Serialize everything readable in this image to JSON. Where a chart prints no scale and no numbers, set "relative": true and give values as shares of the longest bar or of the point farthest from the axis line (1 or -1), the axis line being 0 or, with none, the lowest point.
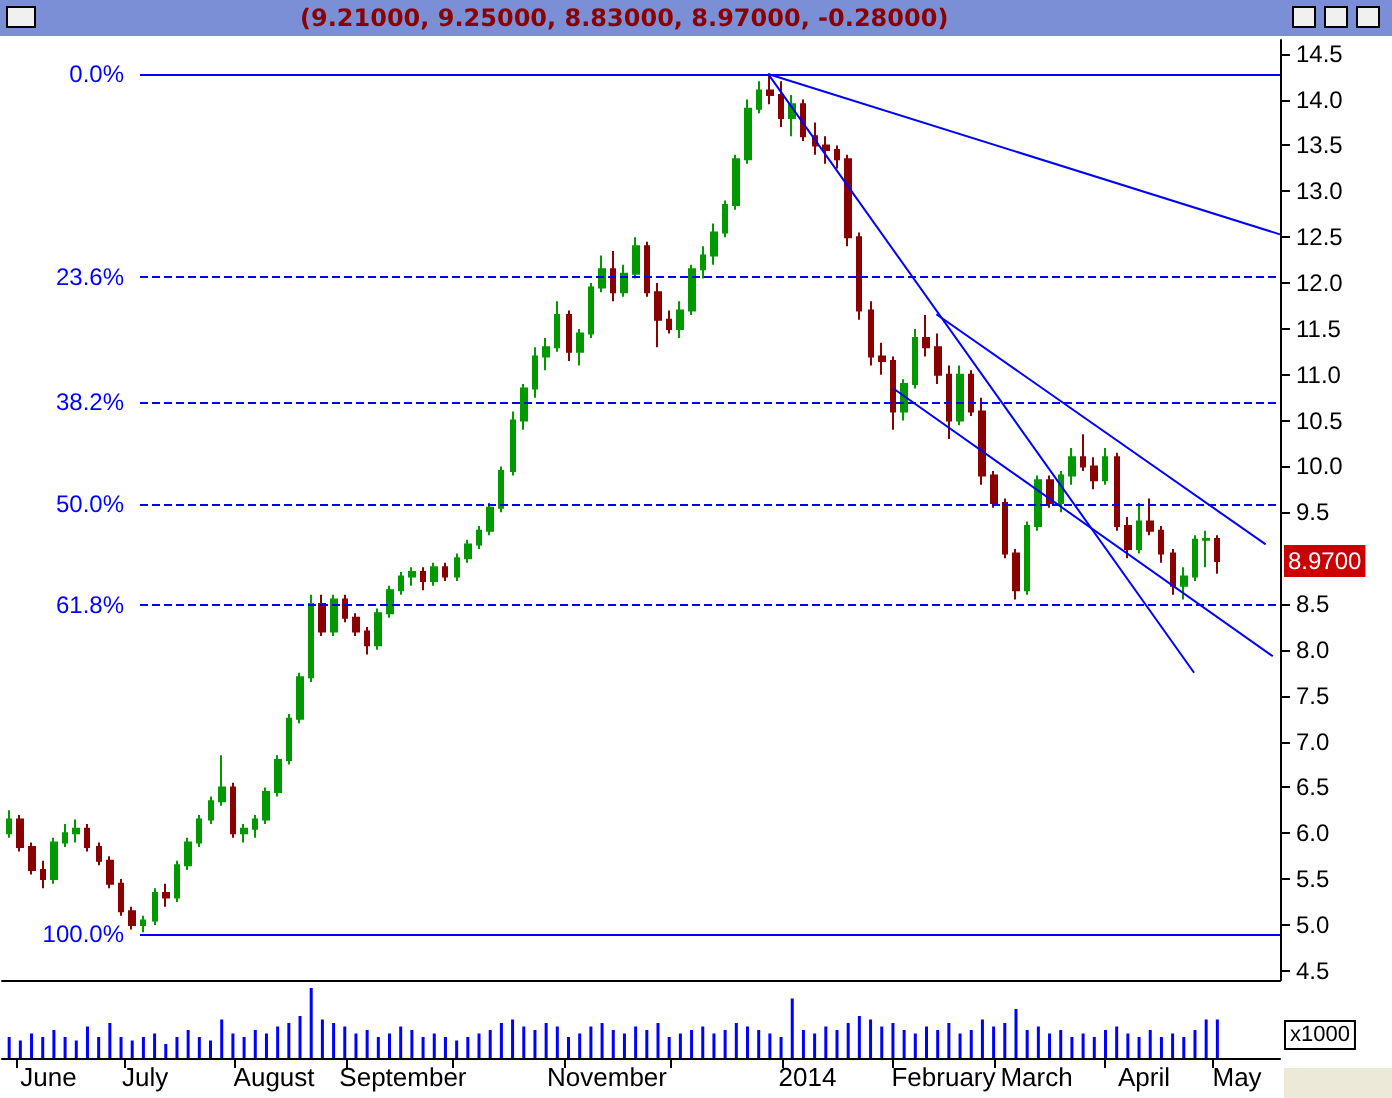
{
  "chart_data": [
    {
      "type": "candlestick",
      "title": "(9.21000, 9.25000, 8.83000, 8.97000, -0.28000)",
      "xlim": [
        "2013-05-28",
        "2014-05-20"
      ],
      "ylim": [
        4.4,
        14.65
      ],
      "y2lim": [
        105.4,
        -3.9
      ],
      "yticks": [
        {
          "value": 4.5,
          "label": "4.5"
        },
        {
          "value": 5,
          "label": "5.0"
        },
        {
          "value": 5.5,
          "label": "5.5"
        },
        {
          "value": 6,
          "label": "6.0"
        },
        {
          "value": 6.5,
          "label": "6.5"
        },
        {
          "value": 7,
          "label": "7.0"
        },
        {
          "value": 7.5,
          "label": "7.5"
        },
        {
          "value": 8,
          "label": "8.0"
        },
        {
          "value": 8.5,
          "label": "8.5"
        },
        {
          "value": 9.5,
          "label": "9.5"
        },
        {
          "value": 10,
          "label": "10.0"
        },
        {
          "value": 10.5,
          "label": "10.5"
        },
        {
          "value": 11,
          "label": "11.0"
        },
        {
          "value": 11.5,
          "label": "11.5"
        },
        {
          "value": 12,
          "label": "12.0"
        },
        {
          "value": 12.5,
          "label": "12.5"
        },
        {
          "value": 13,
          "label": "13.0"
        },
        {
          "value": 13.5,
          "label": "13.5"
        },
        {
          "value": 14,
          "label": "14.0"
        },
        {
          "value": 14.5,
          "label": "14.5"
        }
      ],
      "tick_labels": "y",
      "grid": false,
      "marker": "none",
      "line_style": "solid",
      "ref_lines": [
        {
          "axis": "y2",
          "value": 0,
          "label": "0.0%",
          "color": "#0000ff",
          "line_style": "solid"
        },
        {
          "axis": "y2",
          "value": 23.6,
          "label": "23.6%",
          "color": "#0000ff",
          "line_style": "dashed"
        },
        {
          "axis": "y2",
          "value": 38.2,
          "label": "38.2%",
          "color": "#0000ff",
          "line_style": "dashed"
        },
        {
          "axis": "y2",
          "value": 50,
          "label": "50.0%",
          "color": "#0000ff",
          "line_style": "dashed"
        },
        {
          "axis": "y2",
          "value": 61.8,
          "label": "61.8%",
          "color": "#0000ff",
          "line_style": "dashed"
        },
        {
          "axis": "y2",
          "value": 100,
          "label": "100.0%",
          "color": "#0000ff",
          "line_style": "solid"
        }
      ],
      "annotations": [
        "8.9700"
      ],
      "series": [
        {
          "type": "candlestick",
          "x": [
            "2013-05-30T00:00",
            "2013-06-02T03:00",
            "2013-06-05T06:00",
            "2013-06-08T09:00",
            "2013-06-11T12:00",
            "2013-06-14T15:00",
            "2013-06-17T18:00",
            "2013-06-20T21:00",
            "2013-06-24T00:00",
            "2013-06-27T03:00",
            "2013-06-30T06:00",
            "2013-07-03T09:00",
            "2013-07-06T12:00",
            "2013-07-09T15:00",
            "2013-07-12T18:00",
            "2013-07-15T21:00",
            "2013-07-19T00:00",
            "2013-07-22T03:00",
            "2013-07-25T06:00",
            "2013-07-28T09:00",
            "2013-07-31T12:00",
            "2013-08-03T15:00",
            "2013-08-06T18:00",
            "2013-08-09T21:00",
            "2013-08-13T00:00",
            "2013-08-16T03:00",
            "2013-08-19T06:00",
            "2013-08-22T09:00",
            "2013-08-25T12:00",
            "2013-08-28T15:00",
            "2013-08-31T18:00",
            "2013-09-03T21:00",
            "2013-09-07T00:00",
            "2013-09-10T03:00",
            "2013-09-13T06:00",
            "2013-09-16T09:00",
            "2013-09-19T12:00",
            "2013-09-22T15:00",
            "2013-09-25T18:00",
            "2013-09-28T21:00",
            "2013-10-02T00:00",
            "2013-10-05T03:00",
            "2013-10-08T06:00",
            "2013-10-11T09:00",
            "2013-10-14T12:00",
            "2013-10-17T15:00",
            "2013-10-20T18:00",
            "2013-10-23T21:00",
            "2013-10-27T00:00",
            "2013-10-30T03:00",
            "2013-11-02T06:00",
            "2013-11-05T09:00",
            "2013-11-08T12:00",
            "2013-11-11T15:00",
            "2013-11-14T18:00",
            "2013-11-17T21:00",
            "2013-11-21T00:00",
            "2013-11-24T03:00",
            "2013-11-27T06:00",
            "2013-11-30T09:00",
            "2013-12-03T12:00",
            "2013-12-06T15:00",
            "2013-12-09T18:00",
            "2013-12-12T21:00",
            "2013-12-16T00:00",
            "2013-12-19T03:00",
            "2013-12-22T06:00",
            "2013-12-25T09:00",
            "2013-12-28T12:00",
            "2013-12-31T15:00",
            "2014-01-03T18:00",
            "2014-01-06T21:00",
            "2014-01-10T00:00",
            "2014-01-13T03:00",
            "2014-01-16T06:00",
            "2014-01-19T09:00",
            "2014-01-22T12:00",
            "2014-01-25T15:00",
            "2014-01-28T18:00",
            "2014-01-31T21:00",
            "2014-02-04T00:00",
            "2014-02-07T03:00",
            "2014-02-10T06:00",
            "2014-02-13T09:00",
            "2014-02-16T12:00",
            "2014-02-19T15:00",
            "2014-02-22T18:00",
            "2014-02-25T21:00",
            "2014-03-01T00:00",
            "2014-03-04T03:00",
            "2014-03-07T06:00",
            "2014-03-10T09:00",
            "2014-03-13T12:00",
            "2014-03-16T15:00",
            "2014-03-19T18:00",
            "2014-03-22T21:00",
            "2014-03-26T00:00",
            "2014-03-29T03:00",
            "2014-04-01T06:00",
            "2014-04-04T09:00",
            "2014-04-07T12:00",
            "2014-04-10T15:00",
            "2014-04-13T18:00",
            "2014-04-16T21:00",
            "2014-04-20T00:00",
            "2014-04-23T03:00",
            "2014-04-26T06:00",
            "2014-04-29T09:00",
            "2014-05-02T12:00"
          ],
          "ohlc": [
            [
              6.0,
              6.25,
              5.95,
              6.15
            ],
            [
              6.15,
              6.2,
              5.8,
              5.85
            ],
            [
              5.85,
              5.9,
              5.55,
              5.6
            ],
            [
              5.6,
              5.7,
              5.4,
              5.5
            ],
            [
              5.5,
              5.95,
              5.45,
              5.9
            ],
            [
              5.9,
              6.1,
              5.85,
              6.0
            ],
            [
              6.0,
              6.15,
              5.9,
              6.05
            ],
            [
              6.05,
              6.1,
              5.8,
              5.85
            ],
            [
              5.85,
              5.9,
              5.65,
              5.7
            ],
            [
              5.7,
              5.75,
              5.4,
              5.45
            ],
            [
              5.45,
              5.5,
              5.1,
              5.15
            ],
            [
              5.15,
              5.2,
              4.95,
              5.0
            ],
            [
              5.0,
              5.1,
              4.92,
              5.05
            ],
            [
              5.05,
              5.4,
              5.0,
              5.35
            ],
            [
              5.35,
              5.45,
              5.2,
              5.3
            ],
            [
              5.3,
              5.7,
              5.25,
              5.65
            ],
            [
              5.65,
              5.95,
              5.6,
              5.9
            ],
            [
              5.9,
              6.2,
              5.85,
              6.15
            ],
            [
              6.15,
              6.4,
              6.1,
              6.35
            ],
            [
              6.35,
              6.85,
              6.3,
              6.5
            ],
            [
              6.5,
              6.55,
              5.95,
              6.0
            ],
            [
              6.0,
              6.1,
              5.9,
              6.05
            ],
            [
              6.05,
              6.2,
              5.95,
              6.15
            ],
            [
              6.15,
              6.5,
              6.1,
              6.45
            ],
            [
              6.45,
              6.85,
              6.4,
              6.8
            ],
            [
              6.8,
              7.3,
              6.75,
              7.25
            ],
            [
              7.25,
              7.75,
              7.2,
              7.7
            ],
            [
              7.7,
              8.6,
              7.65,
              8.5
            ],
            [
              8.5,
              8.6,
              8.15,
              8.2
            ],
            [
              8.2,
              8.6,
              8.15,
              8.55
            ],
            [
              8.55,
              8.6,
              8.3,
              8.35
            ],
            [
              8.35,
              8.4,
              8.15,
              8.2
            ],
            [
              8.2,
              8.25,
              7.95,
              8.05
            ],
            [
              8.05,
              8.45,
              8.0,
              8.4
            ],
            [
              8.4,
              8.7,
              8.35,
              8.65
            ],
            [
              8.65,
              8.85,
              8.6,
              8.8
            ],
            [
              8.8,
              8.9,
              8.7,
              8.85
            ],
            [
              8.85,
              8.9,
              8.65,
              8.75
            ],
            [
              8.75,
              8.95,
              8.7,
              8.9
            ],
            [
              8.9,
              8.95,
              8.75,
              8.8
            ],
            [
              8.8,
              9.05,
              8.75,
              9.0
            ],
            [
              9.0,
              9.2,
              8.95,
              9.15
            ],
            [
              9.15,
              9.35,
              9.1,
              9.3
            ],
            [
              9.3,
              9.6,
              9.25,
              9.55
            ],
            [
              9.55,
              10.0,
              9.5,
              9.95
            ],
            [
              9.95,
              10.6,
              9.9,
              10.5
            ],
            [
              10.5,
              10.9,
              10.4,
              10.85
            ],
            [
              10.85,
              11.3,
              10.75,
              11.2
            ],
            [
              11.2,
              11.4,
              11.05,
              11.3
            ],
            [
              11.3,
              11.8,
              11.25,
              11.65
            ],
            [
              11.65,
              11.7,
              11.15,
              11.25
            ],
            [
              11.25,
              11.5,
              11.1,
              11.45
            ],
            [
              11.45,
              12.0,
              11.4,
              11.95
            ],
            [
              11.95,
              12.3,
              11.9,
              12.15
            ],
            [
              12.15,
              12.35,
              11.8,
              11.9
            ],
            [
              11.9,
              12.2,
              11.85,
              12.1
            ],
            [
              12.1,
              12.5,
              12.05,
              12.4
            ],
            [
              12.4,
              12.45,
              11.85,
              11.9
            ],
            [
              11.9,
              12.0,
              11.3,
              11.6
            ],
            [
              11.6,
              11.7,
              11.45,
              11.5
            ],
            [
              11.5,
              11.8,
              11.4,
              11.7
            ],
            [
              11.7,
              12.2,
              11.65,
              12.15
            ],
            [
              12.15,
              12.4,
              12.05,
              12.3
            ],
            [
              12.3,
              12.65,
              12.2,
              12.55
            ],
            [
              12.55,
              12.9,
              12.5,
              12.85
            ],
            [
              12.85,
              13.4,
              12.8,
              13.35
            ],
            [
              13.35,
              14.0,
              13.3,
              13.9
            ],
            [
              13.9,
              14.2,
              13.85,
              14.1
            ],
            [
              14.1,
              14.28,
              13.95,
              14.05
            ],
            [
              14.05,
              14.2,
              13.7,
              13.8
            ],
            [
              13.8,
              14.05,
              13.6,
              13.95
            ],
            [
              13.95,
              14.0,
              13.55,
              13.6
            ],
            [
              13.6,
              13.75,
              13.4,
              13.5
            ],
            [
              13.5,
              13.6,
              13.3,
              13.45
            ],
            [
              13.45,
              13.5,
              13.25,
              13.35
            ],
            [
              13.35,
              13.4,
              12.4,
              12.5
            ],
            [
              12.5,
              12.55,
              11.6,
              11.7
            ],
            [
              11.7,
              11.8,
              11.1,
              11.2
            ],
            [
              11.2,
              11.35,
              11.0,
              11.15
            ],
            [
              11.15,
              11.2,
              10.4,
              10.6
            ],
            [
              10.6,
              10.95,
              10.5,
              10.9
            ],
            [
              10.9,
              11.5,
              10.85,
              11.4
            ],
            [
              11.4,
              11.65,
              11.2,
              11.3
            ],
            [
              11.3,
              11.45,
              10.9,
              11.0
            ],
            [
              11.0,
              11.1,
              10.3,
              10.5
            ],
            [
              10.5,
              11.1,
              10.45,
              11.0
            ],
            [
              11.0,
              11.05,
              10.55,
              10.6
            ],
            [
              10.6,
              10.75,
              9.8,
              9.9
            ],
            [
              9.9,
              9.95,
              9.55,
              9.6
            ],
            [
              9.6,
              9.65,
              9.0,
              9.05
            ],
            [
              9.05,
              9.1,
              8.55,
              8.65
            ],
            [
              8.65,
              9.4,
              8.6,
              9.35
            ],
            [
              9.35,
              9.9,
              9.3,
              9.85
            ],
            [
              9.85,
              9.9,
              9.55,
              9.6
            ],
            [
              9.6,
              9.95,
              9.5,
              9.9
            ],
            [
              9.9,
              10.2,
              9.8,
              10.1
            ],
            [
              10.1,
              10.35,
              9.95,
              10.0
            ],
            [
              10.0,
              10.1,
              9.75,
              9.85
            ],
            [
              9.85,
              10.2,
              9.8,
              10.1
            ],
            [
              10.1,
              10.15,
              9.3,
              9.35
            ],
            [
              9.35,
              9.45,
              9.0,
              9.1
            ],
            [
              9.1,
              9.6,
              9.05,
              9.4
            ],
            [
              9.4,
              9.65,
              9.25,
              9.3
            ],
            [
              9.3,
              9.35,
              8.95,
              9.05
            ],
            [
              9.05,
              9.1,
              8.6,
              8.7
            ],
            [
              8.7,
              8.9,
              8.55,
              8.8
            ],
            [
              8.8,
              9.25,
              8.75,
              9.2
            ],
            [
              9.2,
              9.3,
              8.9,
              9.21
            ],
            [
              9.21,
              9.25,
              8.83,
              8.97
            ]
          ],
          "colors": [
            "#009900",
            "#8b0000",
            "#8b0000",
            "#8b0000",
            "#009900",
            "#009900",
            "#009900",
            "#8b0000",
            "#8b0000",
            "#8b0000",
            "#8b0000",
            "#8b0000",
            "#009900",
            "#009900",
            "#8b0000",
            "#009900",
            "#009900",
            "#009900",
            "#009900",
            "#009900",
            "#8b0000",
            "#009900",
            "#009900",
            "#009900",
            "#009900",
            "#009900",
            "#009900",
            "#009900",
            "#8b0000",
            "#009900",
            "#8b0000",
            "#8b0000",
            "#8b0000",
            "#009900",
            "#009900",
            "#009900",
            "#009900",
            "#8b0000",
            "#009900",
            "#8b0000",
            "#009900",
            "#009900",
            "#009900",
            "#009900",
            "#009900",
            "#009900",
            "#009900",
            "#009900",
            "#009900",
            "#009900",
            "#8b0000",
            "#009900",
            "#009900",
            "#009900",
            "#8b0000",
            "#009900",
            "#009900",
            "#8b0000",
            "#8b0000",
            "#8b0000",
            "#009900",
            "#009900",
            "#009900",
            "#009900",
            "#009900",
            "#009900",
            "#009900",
            "#009900",
            "#8b0000",
            "#8b0000",
            "#009900",
            "#8b0000",
            "#8b0000",
            "#8b0000",
            "#8b0000",
            "#8b0000",
            "#8b0000",
            "#8b0000",
            "#8b0000",
            "#8b0000",
            "#009900",
            "#009900",
            "#8b0000",
            "#8b0000",
            "#8b0000",
            "#009900",
            "#8b0000",
            "#8b0000",
            "#8b0000",
            "#8b0000",
            "#8b0000",
            "#009900",
            "#009900",
            "#8b0000",
            "#009900",
            "#009900",
            "#8b0000",
            "#8b0000",
            "#009900",
            "#8b0000",
            "#8b0000",
            "#009900",
            "#8b0000",
            "#8b0000",
            "#8b0000",
            "#009900",
            "#009900",
            "#009900",
            "#8b0000"
          ]
        },
        {
          "type": "line",
          "color": "#0000ff",
          "x": [
            "2013-12-28",
            "2014-05-20"
          ],
          "values": [
            14.28,
            12.53
          ]
        },
        {
          "type": "line",
          "color": "#0000ff",
          "x": [
            "2013-12-28",
            "2014-04-26"
          ],
          "values": [
            14.28,
            7.75
          ]
        },
        {
          "type": "line",
          "color": "#0000ff",
          "x": [
            "2014-02-13",
            "2014-05-16"
          ],
          "values": [
            11.66,
            9.15
          ]
        },
        {
          "type": "line",
          "color": "#0000ff",
          "x": [
            "2014-02-01",
            "2014-05-18"
          ],
          "values": [
            10.85,
            7.93
          ]
        }
      ]
    },
    {
      "type": "bar",
      "relative": true,
      "xlim": [
        "2013-05-28",
        "2014-05-20"
      ],
      "tick_labels": "x",
      "grid": false,
      "xticks": [
        {
          "value": "2013-06-01",
          "label": null
        },
        {
          "value": "2013-06-10",
          "label": "June"
        },
        {
          "value": "2013-07-01",
          "label": null
        },
        {
          "value": "2013-07-07",
          "label": "July"
        },
        {
          "value": "2013-08-01",
          "label": null
        },
        {
          "value": "2013-08-12",
          "label": "August"
        },
        {
          "value": "2013-09-01",
          "label": null
        },
        {
          "value": "2013-09-17",
          "label": "September"
        },
        {
          "value": "2013-10-01",
          "label": null
        },
        {
          "value": "2013-11-01",
          "label": null
        },
        {
          "value": "2013-11-13",
          "label": "November"
        },
        {
          "value": "2013-12-01",
          "label": null
        },
        {
          "value": "2014-01-01",
          "label": null
        },
        {
          "value": "2014-01-08",
          "label": "2014"
        },
        {
          "value": "2014-02-01",
          "label": null
        },
        {
          "value": "2014-02-15",
          "label": "February"
        },
        {
          "value": "2014-03-01",
          "label": null
        },
        {
          "value": "2014-03-13",
          "label": "March"
        },
        {
          "value": "2014-04-01",
          "label": null
        },
        {
          "value": "2014-04-12",
          "label": "April"
        },
        {
          "value": "2014-05-01",
          "label": null
        },
        {
          "value": "2014-05-08",
          "label": "May"
        }
      ],
      "annotations": [
        "x1000"
      ],
      "series": [
        {
          "color": "#0000ff",
          "x": [
            "2013-05-30T00:00",
            "2013-06-02T03:00",
            "2013-06-05T06:00",
            "2013-06-08T09:00",
            "2013-06-11T12:00",
            "2013-06-14T15:00",
            "2013-06-17T18:00",
            "2013-06-20T21:00",
            "2013-06-24T00:00",
            "2013-06-27T03:00",
            "2013-06-30T06:00",
            "2013-07-03T09:00",
            "2013-07-06T12:00",
            "2013-07-09T15:00",
            "2013-07-12T18:00",
            "2013-07-15T21:00",
            "2013-07-19T00:00",
            "2013-07-22T03:00",
            "2013-07-25T06:00",
            "2013-07-28T09:00",
            "2013-07-31T12:00",
            "2013-08-03T15:00",
            "2013-08-06T18:00",
            "2013-08-09T21:00",
            "2013-08-13T00:00",
            "2013-08-16T03:00",
            "2013-08-19T06:00",
            "2013-08-22T09:00",
            "2013-08-25T12:00",
            "2013-08-28T15:00",
            "2013-08-31T18:00",
            "2013-09-03T21:00",
            "2013-09-07T00:00",
            "2013-09-10T03:00",
            "2013-09-13T06:00",
            "2013-09-16T09:00",
            "2013-09-19T12:00",
            "2013-09-22T15:00",
            "2013-09-25T18:00",
            "2013-09-28T21:00",
            "2013-10-02T00:00",
            "2013-10-05T03:00",
            "2013-10-08T06:00",
            "2013-10-11T09:00",
            "2013-10-14T12:00",
            "2013-10-17T15:00",
            "2013-10-20T18:00",
            "2013-10-23T21:00",
            "2013-10-27T00:00",
            "2013-10-30T03:00",
            "2013-11-02T06:00",
            "2013-11-05T09:00",
            "2013-11-08T12:00",
            "2013-11-11T15:00",
            "2013-11-14T18:00",
            "2013-11-17T21:00",
            "2013-11-21T00:00",
            "2013-11-24T03:00",
            "2013-11-27T06:00",
            "2013-11-30T09:00",
            "2013-12-03T12:00",
            "2013-12-06T15:00",
            "2013-12-09T18:00",
            "2013-12-12T21:00",
            "2013-12-16T00:00",
            "2013-12-19T03:00",
            "2013-12-22T06:00",
            "2013-12-25T09:00",
            "2013-12-28T12:00",
            "2013-12-31T15:00",
            "2014-01-03T18:00",
            "2014-01-06T21:00",
            "2014-01-10T00:00",
            "2014-01-13T03:00",
            "2014-01-16T06:00",
            "2014-01-19T09:00",
            "2014-01-22T12:00",
            "2014-01-25T15:00",
            "2014-01-28T18:00",
            "2014-01-31T21:00",
            "2014-02-04T00:00",
            "2014-02-07T03:00",
            "2014-02-10T06:00",
            "2014-02-13T09:00",
            "2014-02-16T12:00",
            "2014-02-19T15:00",
            "2014-02-22T18:00",
            "2014-02-25T21:00",
            "2014-03-01T00:00",
            "2014-03-04T03:00",
            "2014-03-07T06:00",
            "2014-03-10T09:00",
            "2014-03-13T12:00",
            "2014-03-16T15:00",
            "2014-03-19T18:00",
            "2014-03-22T21:00",
            "2014-03-26T00:00",
            "2014-03-29T03:00",
            "2014-04-01T06:00",
            "2014-04-04T09:00",
            "2014-04-07T12:00",
            "2014-04-10T15:00",
            "2014-04-13T18:00",
            "2014-04-16T21:00",
            "2014-04-20T00:00",
            "2014-04-23T03:00",
            "2014-04-26T06:00",
            "2014-04-29T09:00",
            "2014-05-02T12:00"
          ],
          "values": [
            0.3,
            0.25,
            0.35,
            0.3,
            0.4,
            0.3,
            0.25,
            0.45,
            0.3,
            0.5,
            0.3,
            0.25,
            0.3,
            0.35,
            0.2,
            0.3,
            0.4,
            0.3,
            0.25,
            0.55,
            0.35,
            0.3,
            0.4,
            0.35,
            0.45,
            0.5,
            0.6,
            1,
            0.55,
            0.5,
            0.45,
            0.35,
            0.4,
            0.3,
            0.35,
            0.45,
            0.4,
            0.3,
            0.35,
            0.3,
            0.25,
            0.3,
            0.35,
            0.4,
            0.5,
            0.55,
            0.45,
            0.4,
            0.5,
            0.45,
            0.3,
            0.35,
            0.45,
            0.5,
            0.4,
            0.35,
            0.45,
            0.4,
            0.5,
            0.3,
            0.35,
            0.4,
            0.45,
            0.35,
            0.4,
            0.5,
            0.45,
            0.4,
            0.35,
            0.3,
            0.85,
            0.4,
            0.35,
            0.45,
            0.4,
            0.5,
            0.6,
            0.55,
            0.45,
            0.5,
            0.4,
            0.35,
            0.45,
            0.4,
            0.5,
            0.35,
            0.4,
            0.55,
            0.45,
            0.5,
            0.7,
            0.4,
            0.45,
            0.35,
            0.4,
            0.3,
            0.35,
            0.3,
            0.4,
            0.45,
            0.35,
            0.3,
            0.4,
            0.3,
            0.35,
            0.3,
            0.4,
            0.55,
            0.55
          ]
        }
      ]
    }
  ]
}
